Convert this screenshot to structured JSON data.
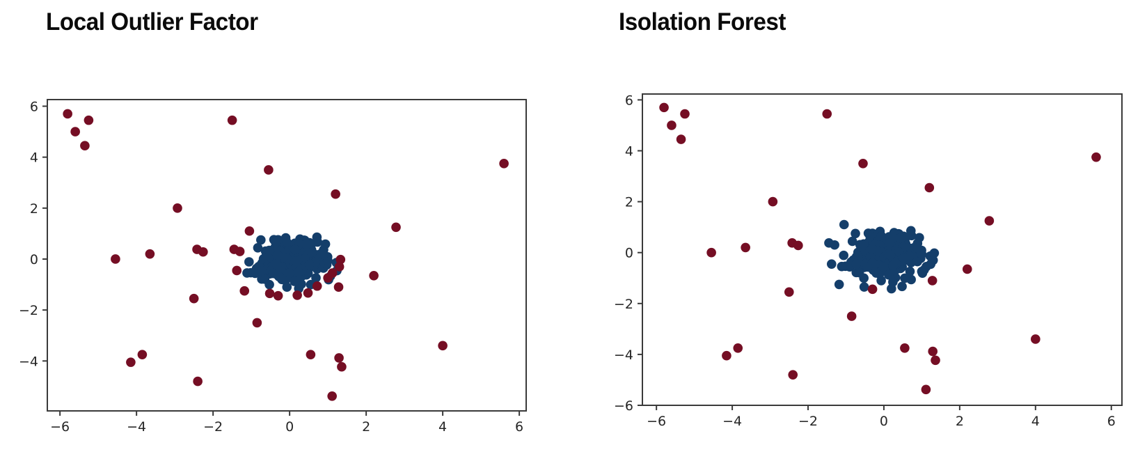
{
  "figure": {
    "background": "#ffffff",
    "titles": [
      "Local Outlier Factor",
      "Isolation Forest"
    ]
  },
  "colors": {
    "inlier": "#143e6a",
    "outlier": "#750e24",
    "spine": "#3a3a3a",
    "tick_text": "#262626"
  },
  "chart_data": [
    {
      "type": "scatter",
      "title": "Local Outlier Factor",
      "xlabel": "",
      "ylabel": "",
      "grid": false,
      "legend": "none",
      "xlim": [
        -6.33,
        6.18
      ],
      "ylim": [
        -5.96,
        6.26
      ],
      "xticks": [
        -6,
        -4,
        -2,
        0,
        2,
        4,
        6
      ],
      "yticks": [
        -4,
        -2,
        0,
        2,
        4,
        6
      ],
      "series": [
        {
          "name": "inliers",
          "color": "#143e6a",
          "cluster_generator": {
            "n": 230,
            "cx": 0.02,
            "cy": -0.08,
            "sx": 0.5,
            "sy": 0.42,
            "rx": 1.35,
            "ry": 1.18,
            "seed": 42
          },
          "extra_points": []
        },
        {
          "name": "predicted-outliers",
          "color": "#750e24",
          "points": [
            [
              -5.8,
              5.7
            ],
            [
              -5.6,
              5.0
            ],
            [
              -5.25,
              5.45
            ],
            [
              -5.35,
              4.45
            ],
            [
              -1.5,
              5.45
            ],
            [
              -0.55,
              3.5
            ],
            [
              5.6,
              3.75
            ],
            [
              -2.93,
              2.0
            ],
            [
              1.2,
              2.55
            ],
            [
              2.78,
              1.25
            ],
            [
              -4.55,
              0.0
            ],
            [
              -3.65,
              0.2
            ],
            [
              -2.42,
              0.38
            ],
            [
              -2.26,
              0.28
            ],
            [
              2.2,
              -0.65
            ],
            [
              -2.5,
              -1.55
            ],
            [
              -0.85,
              -2.5
            ],
            [
              -3.85,
              -3.75
            ],
            [
              -4.15,
              -4.05
            ],
            [
              -2.4,
              -4.8
            ],
            [
              0.55,
              -3.75
            ],
            [
              1.29,
              -3.88
            ],
            [
              1.36,
              -4.23
            ],
            [
              1.11,
              -5.38
            ],
            [
              4.0,
              -3.4
            ],
            [
              -1.45,
              0.38
            ],
            [
              -1.3,
              0.3
            ],
            [
              -1.05,
              1.1
            ],
            [
              -1.38,
              -0.45
            ],
            [
              -1.18,
              -1.25
            ],
            [
              -0.52,
              -1.35
            ],
            [
              -0.3,
              -1.44
            ],
            [
              0.2,
              -1.42
            ],
            [
              0.48,
              -1.33
            ],
            [
              0.72,
              -1.06
            ],
            [
              1.0,
              -0.74
            ],
            [
              1.12,
              -0.55
            ],
            [
              1.28,
              -1.1
            ],
            [
              1.33,
              -0.02
            ],
            [
              1.3,
              -0.3
            ]
          ]
        }
      ]
    },
    {
      "type": "scatter",
      "title": "Isolation Forest",
      "xlabel": "",
      "ylabel": "",
      "grid": false,
      "legend": "none",
      "xlim": [
        -6.37,
        6.28
      ],
      "ylim": [
        -6.0,
        6.23
      ],
      "xticks": [
        -6,
        -4,
        -2,
        0,
        2,
        4,
        6
      ],
      "yticks": [
        -6,
        -4,
        -2,
        0,
        2,
        4,
        6
      ],
      "series": [
        {
          "name": "inliers",
          "color": "#143e6a",
          "cluster_generator": {
            "n": 230,
            "cx": 0.02,
            "cy": -0.08,
            "sx": 0.5,
            "sy": 0.42,
            "rx": 1.35,
            "ry": 1.18,
            "seed": 42
          },
          "extra_points": [
            [
              -1.45,
              0.38
            ],
            [
              -1.3,
              0.3
            ],
            [
              -1.05,
              1.1
            ],
            [
              -1.38,
              -0.45
            ],
            [
              -1.18,
              -1.25
            ],
            [
              -0.52,
              -1.35
            ],
            [
              0.2,
              -1.42
            ],
            [
              0.48,
              -1.33
            ],
            [
              0.72,
              -1.06
            ],
            [
              1.0,
              -0.74
            ],
            [
              1.12,
              -0.55
            ],
            [
              1.33,
              -0.02
            ],
            [
              1.3,
              -0.3
            ]
          ]
        },
        {
          "name": "predicted-outliers",
          "color": "#750e24",
          "points": [
            [
              -5.8,
              5.7
            ],
            [
              -5.6,
              5.0
            ],
            [
              -5.25,
              5.45
            ],
            [
              -5.35,
              4.45
            ],
            [
              -1.5,
              5.45
            ],
            [
              -0.55,
              3.5
            ],
            [
              5.6,
              3.75
            ],
            [
              -2.93,
              2.0
            ],
            [
              1.2,
              2.55
            ],
            [
              2.78,
              1.25
            ],
            [
              -4.55,
              0.0
            ],
            [
              -3.65,
              0.2
            ],
            [
              -2.42,
              0.38
            ],
            [
              -2.26,
              0.28
            ],
            [
              2.2,
              -0.65
            ],
            [
              -2.5,
              -1.55
            ],
            [
              -0.85,
              -2.5
            ],
            [
              -3.85,
              -3.75
            ],
            [
              -4.15,
              -4.05
            ],
            [
              -2.4,
              -4.8
            ],
            [
              0.55,
              -3.75
            ],
            [
              1.29,
              -3.88
            ],
            [
              1.36,
              -4.23
            ],
            [
              1.11,
              -5.38
            ],
            [
              4.0,
              -3.4
            ],
            [
              -0.3,
              -1.44
            ],
            [
              1.28,
              -1.1
            ]
          ]
        }
      ]
    }
  ]
}
